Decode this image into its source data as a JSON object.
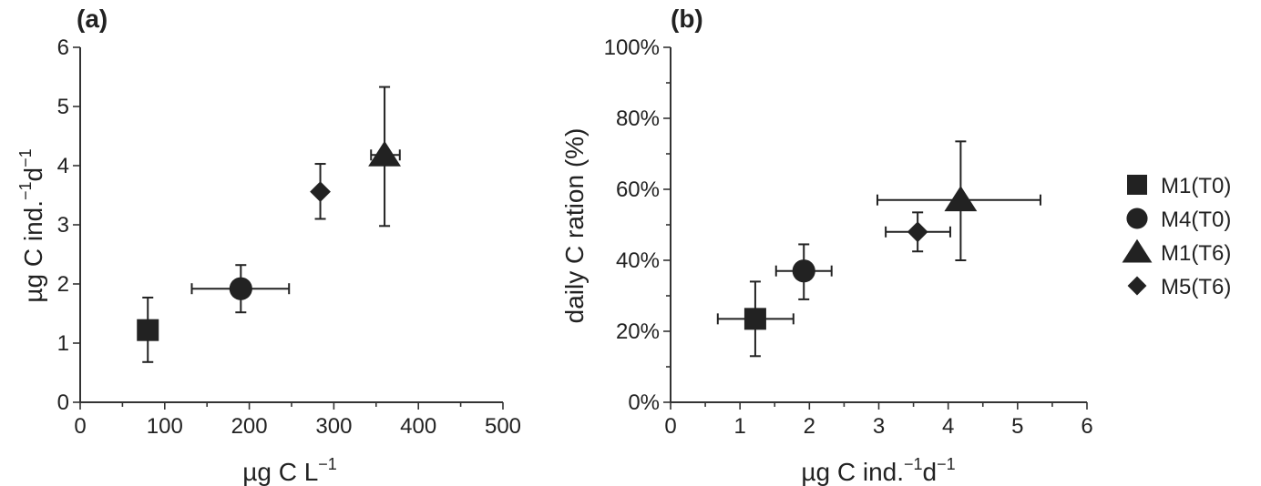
{
  "chart_data": [
    {
      "panel_label": "(a)",
      "type": "scatter",
      "xlabel": {
        "main": "µg C L",
        "sup1": "−1",
        "mid": "",
        "sup2": ""
      },
      "ylabel": {
        "main": "µg C ind.",
        "sup1": "−1",
        "mid": "d",
        "sup2": "−1"
      },
      "xlim": [
        0,
        500
      ],
      "ylim": [
        0,
        6
      ],
      "x_ticks": [
        "0",
        "100",
        "200",
        "300",
        "400",
        "500"
      ],
      "y_ticks": [
        "0",
        "1",
        "2",
        "3",
        "4",
        "5",
        "6"
      ],
      "series": [
        {
          "name": "M1(T0)",
          "marker": "square",
          "x": 80,
          "y": 1.22,
          "x_err": [
            0,
            0
          ],
          "y_err": [
            0.68,
            1.77
          ]
        },
        {
          "name": "M4(T0)",
          "marker": "circle",
          "x": 190,
          "y": 1.92,
          "x_err": [
            132,
            247
          ],
          "y_err": [
            1.52,
            2.32
          ]
        },
        {
          "name": "M1(T6)",
          "marker": "triangle",
          "x": 360,
          "y": 4.18,
          "x_err": [
            344,
            378
          ],
          "y_err": [
            2.98,
            5.33
          ]
        },
        {
          "name": "M5(T6)",
          "marker": "diamond",
          "x": 284,
          "y": 3.56,
          "x_err": [
            284,
            284
          ],
          "y_err": [
            3.1,
            4.03
          ]
        }
      ]
    },
    {
      "panel_label": "(b)",
      "type": "scatter",
      "xlabel": {
        "main": "µg C ind.",
        "sup1": "−1",
        "mid": "d",
        "sup2": "−1"
      },
      "ylabel": {
        "main": "daily C ration (%)",
        "sup1": "",
        "mid": "",
        "sup2": ""
      },
      "xlim": [
        0,
        6
      ],
      "ylim": [
        0,
        100
      ],
      "x_ticks": [
        "0",
        "1",
        "2",
        "3",
        "4",
        "5",
        "6"
      ],
      "y_ticks": [
        "0%",
        "20%",
        "40%",
        "60%",
        "80%",
        "100%"
      ],
      "series": [
        {
          "name": "M1(T0)",
          "marker": "square",
          "x": 1.22,
          "y": 23.5,
          "x_err": [
            0.68,
            1.77
          ],
          "y_err": [
            13,
            34
          ]
        },
        {
          "name": "M4(T0)",
          "marker": "circle",
          "x": 1.92,
          "y": 37,
          "x_err": [
            1.52,
            2.32
          ],
          "y_err": [
            29,
            44.5
          ]
        },
        {
          "name": "M1(T6)",
          "marker": "triangle",
          "x": 4.18,
          "y": 57,
          "x_err": [
            2.98,
            5.33
          ],
          "y_err": [
            40,
            73.5
          ]
        },
        {
          "name": "M5(T6)",
          "marker": "diamond",
          "x": 3.56,
          "y": 48,
          "x_err": [
            3.1,
            4.03
          ],
          "y_err": [
            42.5,
            53.5
          ]
        }
      ]
    }
  ],
  "legend": {
    "placement": "right",
    "entries": [
      {
        "label": "M1(T0)",
        "marker": "square"
      },
      {
        "label": "M4(T0)",
        "marker": "circle"
      },
      {
        "label": "M1(T6)",
        "marker": "triangle"
      },
      {
        "label": "M5(T6)",
        "marker": "diamond"
      }
    ]
  },
  "colors": {
    "marker": "#222222",
    "axis": "#333333",
    "text": "#222222"
  }
}
